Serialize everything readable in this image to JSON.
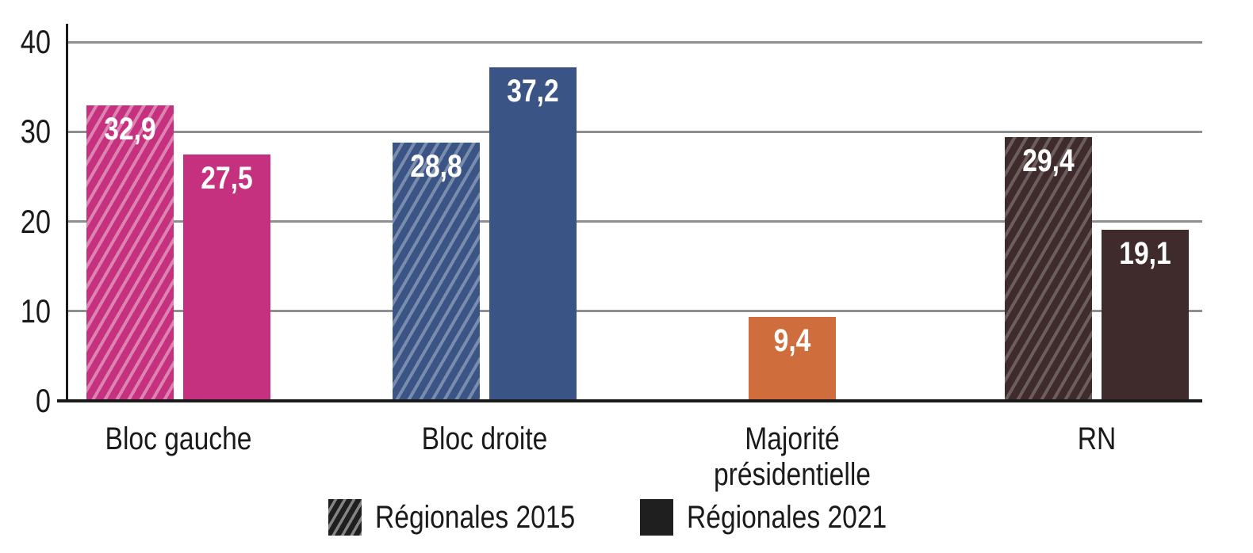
{
  "chart_data": {
    "type": "bar",
    "title": "",
    "xlabel": "",
    "ylabel": "",
    "categories": [
      "Bloc gauche",
      "Bloc droite",
      "Majorité présidentielle",
      "RN"
    ],
    "series": [
      {
        "name": "Régionales 2015",
        "style": "hatched",
        "values": [
          32.9,
          28.8,
          null,
          29.4
        ],
        "value_labels": [
          "32,9",
          "28,8",
          null,
          "29,4"
        ]
      },
      {
        "name": "Régionales 2021",
        "style": "solid",
        "values": [
          27.5,
          37.2,
          9.4,
          19.1
        ],
        "value_labels": [
          "27,5",
          "37,2",
          "9,4",
          "19,1"
        ]
      }
    ],
    "category_colors": [
      "#c5317e",
      "#3a5585",
      "#d06d3c",
      "#3f2b2b"
    ],
    "ylim": [
      0,
      40
    ],
    "yticks": [
      0,
      10,
      20,
      30,
      40
    ],
    "ytick_labels": [
      "0",
      "10",
      "20",
      "30",
      "40"
    ],
    "grid": true,
    "legend_position": "bottom"
  },
  "legend": {
    "items": [
      {
        "label": "Régionales 2015",
        "style": "hatched"
      },
      {
        "label": "Régionales 2021",
        "style": "solid"
      }
    ],
    "swatch_color": "#1f1f1f"
  },
  "colors": {
    "background": "#ffffff",
    "axis": "#1a1a1a",
    "gridline": "#8f8f8f",
    "tick_text": "#1a1a1a",
    "bar_value_text": "#ffffff"
  }
}
